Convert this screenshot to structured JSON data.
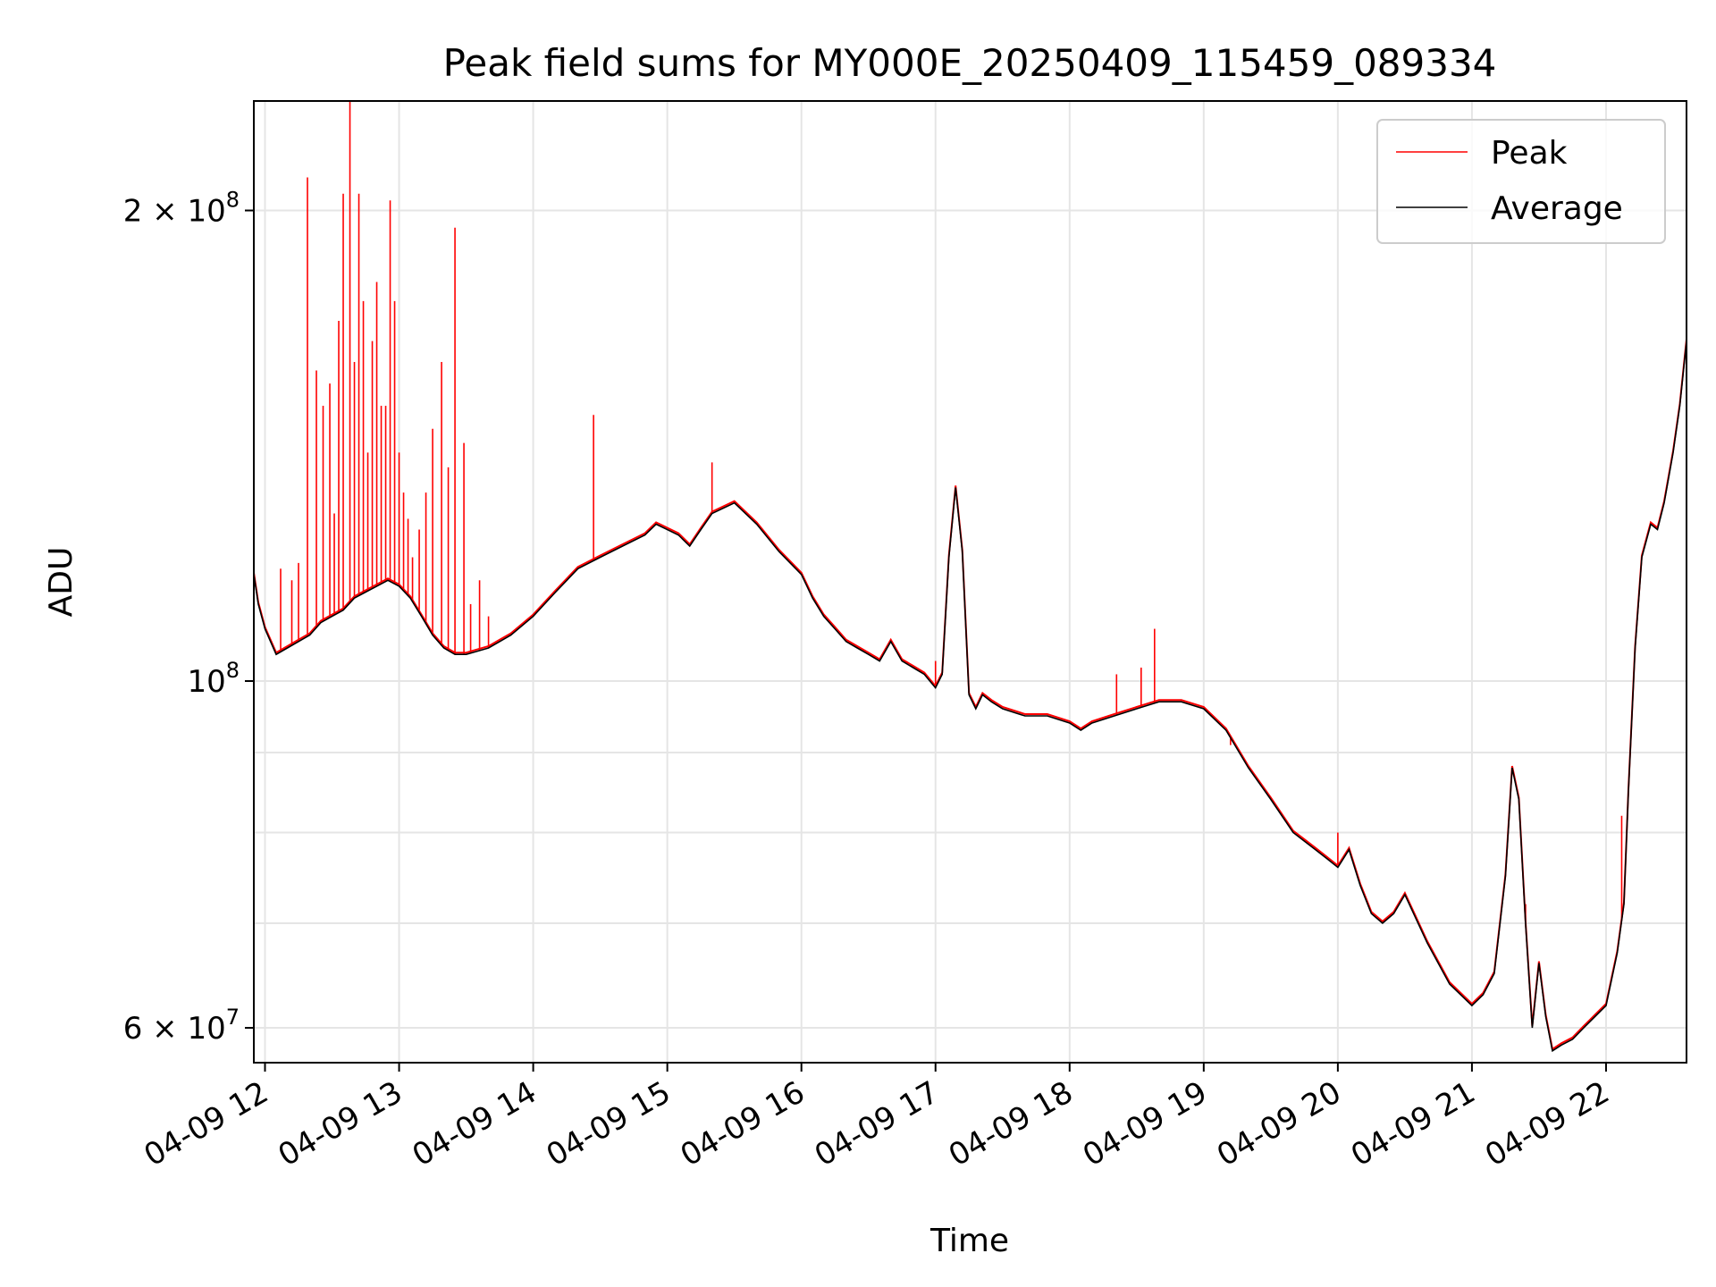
{
  "chart_data": {
    "type": "line",
    "title": "Peak field sums for MY000E_20250409_115459_089334",
    "xlabel": "Time",
    "ylabel": "ADU",
    "yscale": "log",
    "ylim": [
      57000000,
      235000000
    ],
    "xlim": [
      "2025-04-09 11:55",
      "2025-04-09 22:36"
    ],
    "grid": true,
    "legend_position": "top-right",
    "x_ticks": [
      {
        "t": "2025-04-09 12:00",
        "label": "04-09 12"
      },
      {
        "t": "2025-04-09 13:00",
        "label": "04-09 13"
      },
      {
        "t": "2025-04-09 14:00",
        "label": "04-09 14"
      },
      {
        "t": "2025-04-09 15:00",
        "label": "04-09 15"
      },
      {
        "t": "2025-04-09 16:00",
        "label": "04-09 16"
      },
      {
        "t": "2025-04-09 17:00",
        "label": "04-09 17"
      },
      {
        "t": "2025-04-09 18:00",
        "label": "04-09 18"
      },
      {
        "t": "2025-04-09 19:00",
        "label": "04-09 19"
      },
      {
        "t": "2025-04-09 20:00",
        "label": "04-09 20"
      },
      {
        "t": "2025-04-09 21:00",
        "label": "04-09 21"
      },
      {
        "t": "2025-04-09 22:00",
        "label": "04-09 22"
      }
    ],
    "y_major_ticks": [
      {
        "value": 200000000,
        "mantissa": "2",
        "exponent": "8"
      },
      {
        "value": 100000000,
        "mantissa": "",
        "exponent": "8"
      },
      {
        "value": 60000000,
        "mantissa": "6",
        "exponent": "7"
      }
    ],
    "y_minor_gridlines": [
      70000000,
      80000000,
      90000000
    ],
    "series": [
      {
        "name": "Average",
        "color": "#000000",
        "x": [
          "2025-04-09 11:55",
          "2025-04-09 11:57",
          "2025-04-09 12:00",
          "2025-04-09 12:05",
          "2025-04-09 12:10",
          "2025-04-09 12:15",
          "2025-04-09 12:20",
          "2025-04-09 12:25",
          "2025-04-09 12:30",
          "2025-04-09 12:35",
          "2025-04-09 12:40",
          "2025-04-09 12:45",
          "2025-04-09 12:50",
          "2025-04-09 12:55",
          "2025-04-09 13:00",
          "2025-04-09 13:05",
          "2025-04-09 13:10",
          "2025-04-09 13:15",
          "2025-04-09 13:20",
          "2025-04-09 13:25",
          "2025-04-09 13:30",
          "2025-04-09 13:35",
          "2025-04-09 13:40",
          "2025-04-09 13:45",
          "2025-04-09 13:50",
          "2025-04-09 14:00",
          "2025-04-09 14:10",
          "2025-04-09 14:20",
          "2025-04-09 14:30",
          "2025-04-09 14:40",
          "2025-04-09 14:50",
          "2025-04-09 14:55",
          "2025-04-09 15:00",
          "2025-04-09 15:05",
          "2025-04-09 15:10",
          "2025-04-09 15:15",
          "2025-04-09 15:20",
          "2025-04-09 15:30",
          "2025-04-09 15:40",
          "2025-04-09 15:50",
          "2025-04-09 16:00",
          "2025-04-09 16:05",
          "2025-04-09 16:10",
          "2025-04-09 16:15",
          "2025-04-09 16:20",
          "2025-04-09 16:25",
          "2025-04-09 16:30",
          "2025-04-09 16:35",
          "2025-04-09 16:40",
          "2025-04-09 16:45",
          "2025-04-09 16:50",
          "2025-04-09 16:55",
          "2025-04-09 17:00",
          "2025-04-09 17:03",
          "2025-04-09 17:06",
          "2025-04-09 17:09",
          "2025-04-09 17:12",
          "2025-04-09 17:15",
          "2025-04-09 17:18",
          "2025-04-09 17:21",
          "2025-04-09 17:25",
          "2025-04-09 17:30",
          "2025-04-09 17:40",
          "2025-04-09 17:50",
          "2025-04-09 18:00",
          "2025-04-09 18:05",
          "2025-04-09 18:10",
          "2025-04-09 18:20",
          "2025-04-09 18:30",
          "2025-04-09 18:40",
          "2025-04-09 18:50",
          "2025-04-09 19:00",
          "2025-04-09 19:10",
          "2025-04-09 19:20",
          "2025-04-09 19:30",
          "2025-04-09 19:40",
          "2025-04-09 19:45",
          "2025-04-09 19:50",
          "2025-04-09 19:55",
          "2025-04-09 20:00",
          "2025-04-09 20:05",
          "2025-04-09 20:10",
          "2025-04-09 20:15",
          "2025-04-09 20:20",
          "2025-04-09 20:25",
          "2025-04-09 20:30",
          "2025-04-09 20:40",
          "2025-04-09 20:50",
          "2025-04-09 21:00",
          "2025-04-09 21:05",
          "2025-04-09 21:10",
          "2025-04-09 21:15",
          "2025-04-09 21:18",
          "2025-04-09 21:21",
          "2025-04-09 21:24",
          "2025-04-09 21:27",
          "2025-04-09 21:30",
          "2025-04-09 21:33",
          "2025-04-09 21:36",
          "2025-04-09 21:40",
          "2025-04-09 21:45",
          "2025-04-09 21:50",
          "2025-04-09 21:55",
          "2025-04-09 22:00",
          "2025-04-09 22:05",
          "2025-04-09 22:08",
          "2025-04-09 22:10",
          "2025-04-09 22:13",
          "2025-04-09 22:16",
          "2025-04-09 22:20",
          "2025-04-09 22:23",
          "2025-04-09 22:26",
          "2025-04-09 22:30",
          "2025-04-09 22:33",
          "2025-04-09 22:36"
        ],
        "y": [
          117000000,
          112000000,
          108000000,
          104000000,
          105000000,
          106000000,
          107000000,
          109000000,
          110000000,
          111000000,
          113000000,
          114000000,
          115000000,
          116000000,
          115000000,
          113000000,
          110000000,
          107000000,
          105000000,
          104000000,
          104000000,
          104500000,
          105000000,
          106000000,
          107000000,
          110000000,
          114000000,
          118000000,
          120000000,
          122000000,
          124000000,
          126000000,
          125000000,
          124000000,
          122000000,
          125000000,
          128000000,
          130000000,
          126000000,
          121000000,
          117000000,
          113000000,
          110000000,
          108000000,
          106000000,
          105000000,
          104000000,
          103000000,
          106000000,
          103000000,
          102000000,
          101000000,
          99000000,
          101000000,
          120000000,
          133000000,
          121000000,
          98000000,
          96000000,
          98000000,
          97000000,
          96000000,
          95000000,
          95000000,
          94000000,
          93000000,
          94000000,
          95000000,
          96000000,
          97000000,
          97000000,
          96000000,
          93000000,
          88000000,
          84000000,
          80000000,
          79000000,
          78000000,
          77000000,
          76000000,
          78000000,
          74000000,
          71000000,
          70000000,
          71000000,
          73000000,
          68000000,
          64000000,
          62000000,
          63000000,
          65000000,
          75000000,
          88000000,
          84000000,
          70000000,
          60000000,
          66000000,
          61000000,
          58000000,
          58500000,
          59000000,
          60000000,
          61000000,
          62000000,
          67000000,
          72000000,
          85000000,
          105000000,
          120000000,
          126000000,
          125000000,
          130000000,
          140000000,
          150000000,
          165000000
        ]
      },
      {
        "name": "Peak",
        "color": "#ff0000",
        "x": [
          "2025-04-09 12:07",
          "2025-04-09 12:12",
          "2025-04-09 12:15",
          "2025-04-09 12:19",
          "2025-04-09 12:23",
          "2025-04-09 12:26",
          "2025-04-09 12:29",
          "2025-04-09 12:31",
          "2025-04-09 12:33",
          "2025-04-09 12:35",
          "2025-04-09 12:38",
          "2025-04-09 12:40",
          "2025-04-09 12:42",
          "2025-04-09 12:44",
          "2025-04-09 12:46",
          "2025-04-09 12:48",
          "2025-04-09 12:50",
          "2025-04-09 12:52",
          "2025-04-09 12:54",
          "2025-04-09 12:56",
          "2025-04-09 12:58",
          "2025-04-09 13:00",
          "2025-04-09 13:02",
          "2025-04-09 13:04",
          "2025-04-09 13:06",
          "2025-04-09 13:09",
          "2025-04-09 13:12",
          "2025-04-09 13:15",
          "2025-04-09 13:19",
          "2025-04-09 13:22",
          "2025-04-09 13:25",
          "2025-04-09 13:29",
          "2025-04-09 13:32",
          "2025-04-09 13:36",
          "2025-04-09 13:40",
          "2025-04-09 14:27",
          "2025-04-09 15:20",
          "2025-04-09 17:00",
          "2025-04-09 18:21",
          "2025-04-09 18:32",
          "2025-04-09 18:38",
          "2025-04-09 19:12",
          "2025-04-09 20:00",
          "2025-04-09 21:24",
          "2025-04-09 22:07"
        ],
        "y": [
          118000000,
          116000000,
          119000000,
          210000000,
          158000000,
          150000000,
          155000000,
          128000000,
          170000000,
          205000000,
          235000000,
          160000000,
          205000000,
          175000000,
          140000000,
          165000000,
          180000000,
          150000000,
          150000000,
          203000000,
          175000000,
          140000000,
          132000000,
          127000000,
          120000000,
          125000000,
          132000000,
          145000000,
          160000000,
          137000000,
          195000000,
          142000000,
          112000000,
          116000000,
          110000000,
          148000000,
          138000000,
          103000000,
          101000000,
          102000000,
          108000000,
          91000000,
          80000000,
          72000000,
          82000000
        ]
      }
    ]
  },
  "legend": {
    "items": [
      {
        "label": "Peak",
        "color": "#ff0000"
      },
      {
        "label": "Average",
        "color": "#000000"
      }
    ]
  },
  "colors": {
    "grid": "#e5e5e5",
    "axes": "#000000",
    "legend_border": "#cccccc"
  }
}
